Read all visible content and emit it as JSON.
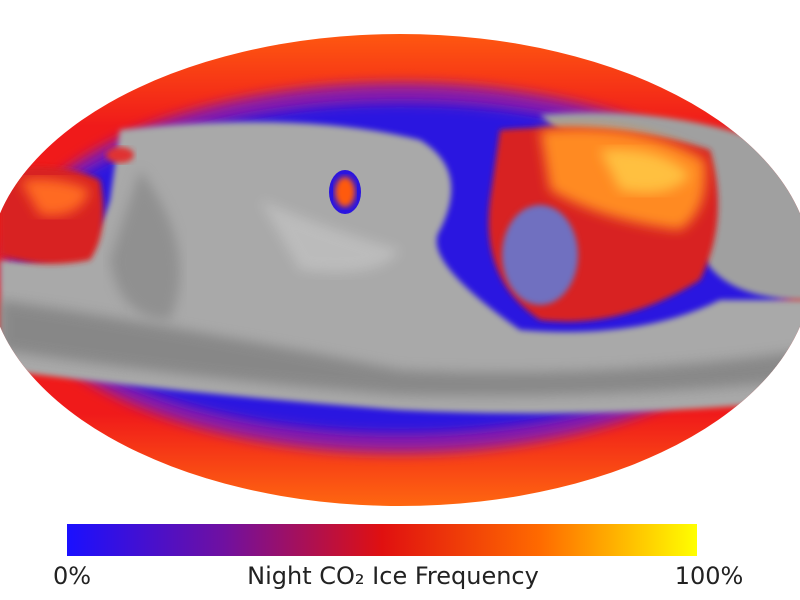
{
  "colorbar": {
    "title": "Night CO₂ Ice Frequency",
    "min": 0,
    "max": 100,
    "ticks": [
      {
        "value": 0,
        "label": "0%"
      },
      {
        "value": 100,
        "label": "100%"
      }
    ],
    "colors": [
      "#1a10ff",
      "#7010a0",
      "#e01010",
      "#ff6a00",
      "#ffff00"
    ]
  }
}
